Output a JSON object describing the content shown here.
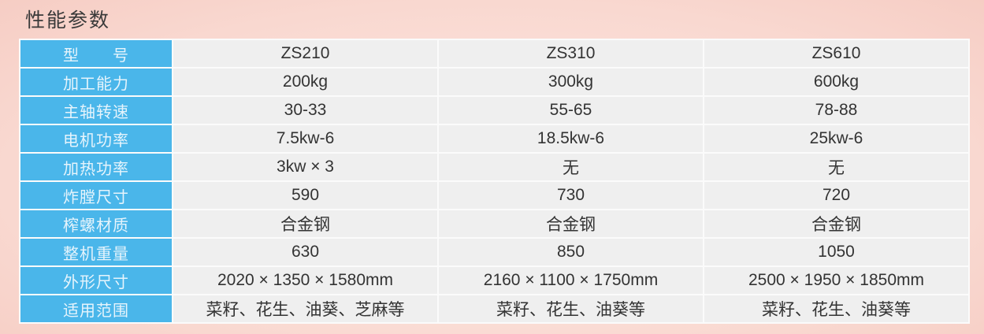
{
  "title": "性能参数",
  "accent_color": "#4ab6ea",
  "rows": [
    {
      "label": "型　　号",
      "values": [
        "ZS210",
        "ZS310",
        "ZS610"
      ]
    },
    {
      "label": "加工能力",
      "values": [
        "200kg",
        "300kg",
        "600kg"
      ]
    },
    {
      "label": "主轴转速",
      "values": [
        "30-33",
        "55-65",
        "78-88"
      ]
    },
    {
      "label": "电机功率",
      "values": [
        "7.5kw-6",
        "18.5kw-6",
        "25kw-6"
      ]
    },
    {
      "label": "加热功率",
      "values": [
        "3kw × 3",
        "无",
        "无"
      ]
    },
    {
      "label": "炸膛尺寸",
      "values": [
        "590",
        "730",
        "720"
      ]
    },
    {
      "label": "榨螺材质",
      "values": [
        "合金钢",
        "合金钢",
        "合金钢"
      ]
    },
    {
      "label": "整机重量",
      "values": [
        "630",
        "850",
        "1050"
      ]
    },
    {
      "label": "外形尺寸",
      "values": [
        "2020 × 1350 × 1580mm",
        "2160 × 1100 × 1750mm",
        "2500 × 1950 × 1850mm"
      ]
    },
    {
      "label": "适用范围",
      "values": [
        "菜籽、花生、油葵、芝麻等",
        "菜籽、花生、油葵等",
        "菜籽、花生、油葵等"
      ]
    }
  ]
}
